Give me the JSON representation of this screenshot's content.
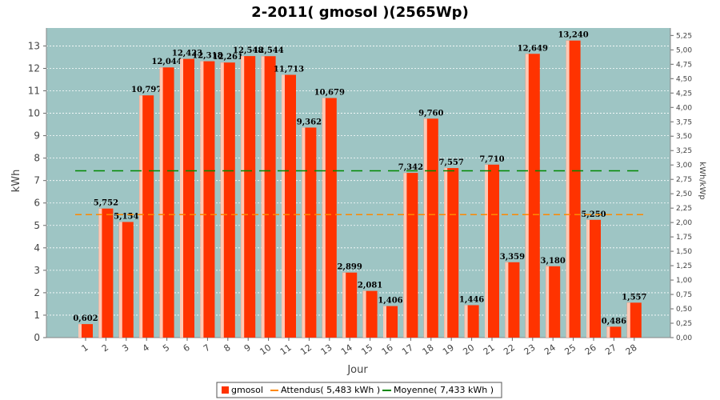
{
  "chart_data": {
    "type": "bar",
    "title": "2-2011( gmosol )(2565Wp)",
    "xlabel": "Jour",
    "ylabel": "kWh",
    "y2label": "kWh/kWp",
    "ylim": [
      0,
      13.8
    ],
    "y2lim": [
      0,
      5.38
    ],
    "yticks": [
      0,
      1,
      2,
      3,
      4,
      5,
      6,
      7,
      8,
      9,
      10,
      11,
      12,
      13
    ],
    "y2ticks": [
      "0,00",
      "0,25",
      "0,50",
      "0,75",
      "1,00",
      "1,25",
      "1,50",
      "1,75",
      "2,00",
      "2,25",
      "2,50",
      "2,75",
      "3,00",
      "3,25",
      "3,50",
      "3,75",
      "4,00",
      "4,25",
      "4,50",
      "4,75",
      "5,00",
      "5,25"
    ],
    "grid": true,
    "legend_position": "bottom",
    "categories": [
      "1",
      "2",
      "3",
      "4",
      "5",
      "6",
      "7",
      "8",
      "9",
      "10",
      "11",
      "12",
      "13",
      "14",
      "15",
      "16",
      "17",
      "18",
      "19",
      "20",
      "21",
      "22",
      "23",
      "24",
      "25",
      "26",
      "27",
      "28"
    ],
    "series": [
      {
        "name": "gmosol",
        "color": "#ff3300",
        "values": [
          0.602,
          5.752,
          5.154,
          10.797,
          12.044,
          12.423,
          12.318,
          12.261,
          12.548,
          12.544,
          11.713,
          9.362,
          10.679,
          2.899,
          2.081,
          1.406,
          7.342,
          9.76,
          7.557,
          1.446,
          7.71,
          3.359,
          12.649,
          3.18,
          13.24,
          5.25,
          0.486,
          1.557
        ],
        "labels": [
          "0,602",
          "5,752",
          "5,154",
          "10,797",
          "12,044",
          "12,423",
          "12,318",
          "12,261",
          "12,548",
          "12,544",
          "11,713",
          "9,362",
          "10,679",
          "2,899",
          "2,081",
          "1,406",
          "7,342",
          "9,760",
          "7,557",
          "1,446",
          "7,710",
          "3,359",
          "12,649",
          "3,180",
          "13,240",
          "5,250",
          "0,486",
          "1,557"
        ]
      }
    ],
    "reference_lines": [
      {
        "name": "Attendus( 5,483 kWh )",
        "value": 5.483,
        "color": "#ff8800"
      },
      {
        "name": "Moyenne( 7,433 kWh )",
        "value": 7.433,
        "color": "#008800"
      }
    ],
    "legend": [
      "gmosol",
      "Attendus( 5,483 kWh )",
      "Moyenne( 7,433 kWh )"
    ],
    "colors": {
      "plot_bg": "#9ec5c4",
      "bar": "#ff3300",
      "bar_highlight": "#ffc8b4",
      "grid": "#ffffff"
    }
  }
}
